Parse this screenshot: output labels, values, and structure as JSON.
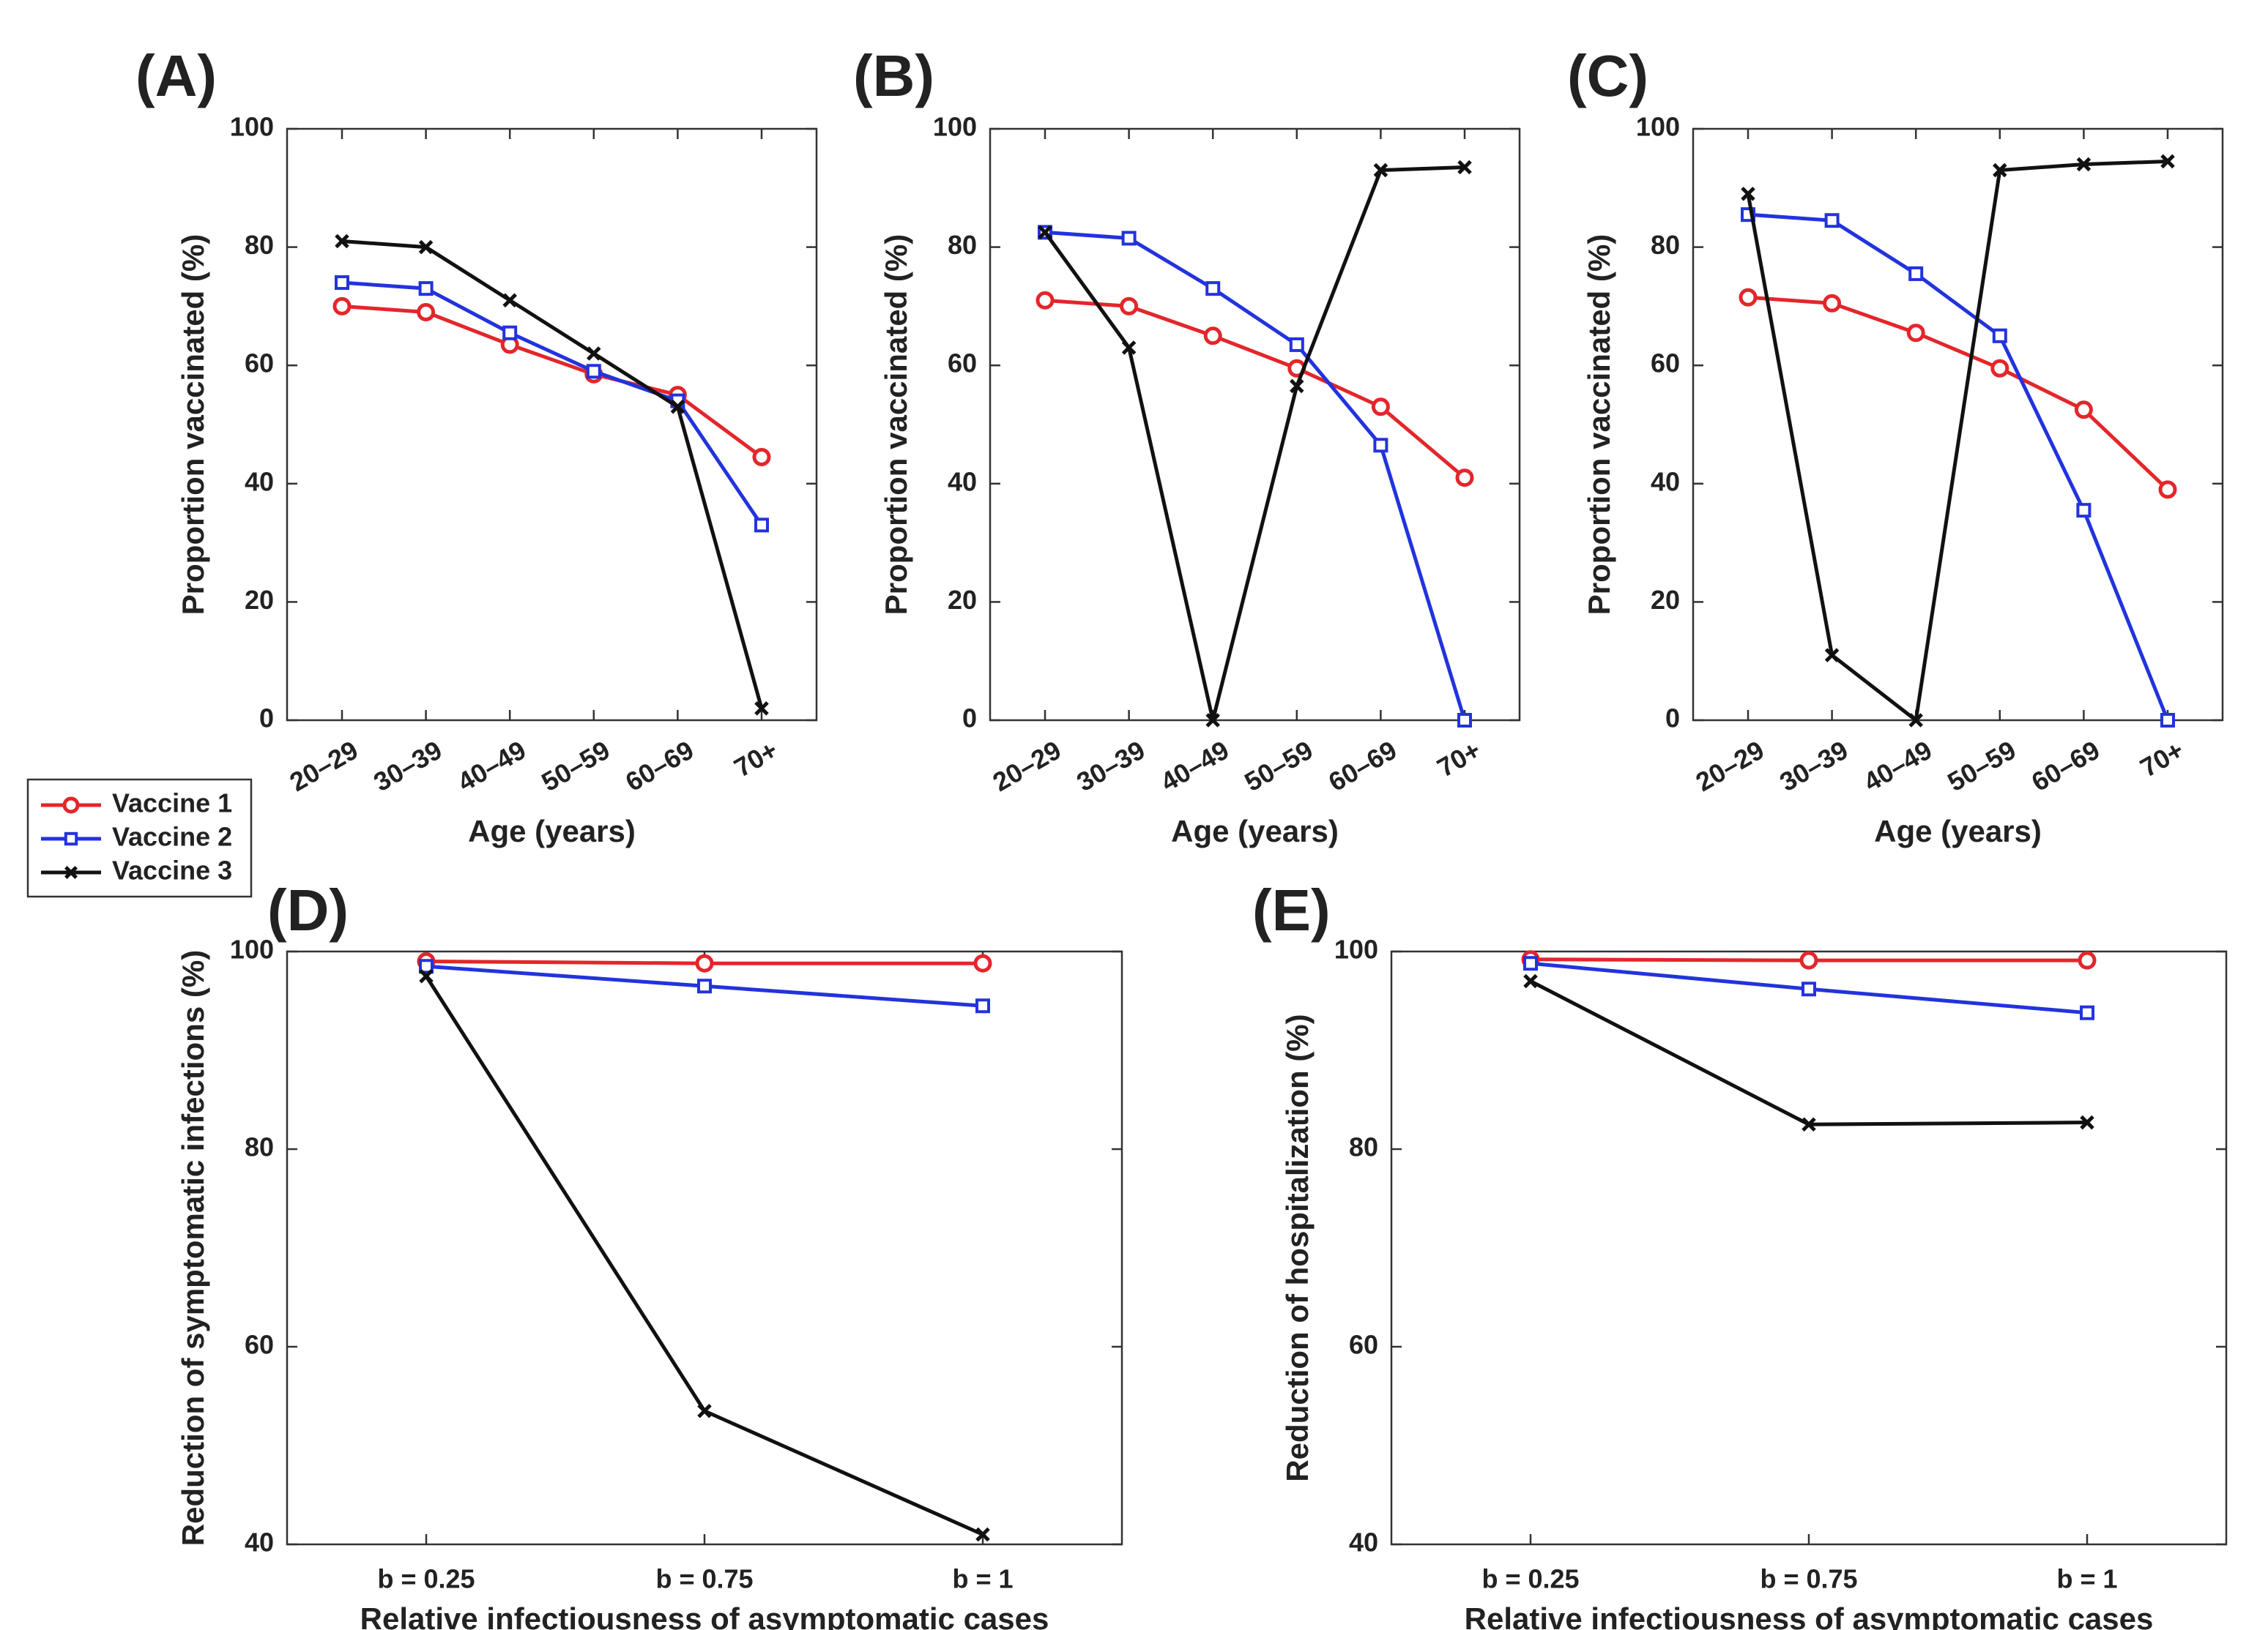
{
  "colors": {
    "vaccine1": "#e3262b",
    "vaccine2": "#2233dd",
    "vaccine3": "#111111",
    "axis": "#333333"
  },
  "legend": {
    "placement": "left, between rows",
    "entries": [
      {
        "label": "Vaccine 1",
        "marker": "circle",
        "color_key": "vaccine1"
      },
      {
        "label": "Vaccine 2",
        "marker": "square",
        "color_key": "vaccine2"
      },
      {
        "label": "Vaccine 3",
        "marker": "x",
        "color_key": "vaccine3"
      }
    ]
  },
  "chart_data": [
    {
      "panel": "(A)",
      "type": "line",
      "categories": [
        "20–29",
        "30–39",
        "40–49",
        "50–59",
        "60–69",
        "70+"
      ],
      "xlabel": "Age (years)",
      "ylabel": "Proportion vaccinated (%)",
      "ylim": [
        0,
        100
      ],
      "yticks": [
        0,
        20,
        40,
        60,
        80,
        100
      ],
      "grid": false,
      "series": [
        {
          "name": "Vaccine 1",
          "values": [
            70,
            69,
            63.5,
            58.5,
            55,
            44.5
          ]
        },
        {
          "name": "Vaccine 2",
          "values": [
            74,
            73,
            65.5,
            59,
            54,
            33
          ]
        },
        {
          "name": "Vaccine 3",
          "values": [
            81,
            80,
            71,
            62,
            53,
            2
          ]
        }
      ]
    },
    {
      "panel": "(B)",
      "type": "line",
      "categories": [
        "20–29",
        "30–39",
        "40–49",
        "50–59",
        "60–69",
        "70+"
      ],
      "xlabel": "Age (years)",
      "ylabel": "Proportion vaccinated (%)",
      "ylim": [
        0,
        100
      ],
      "yticks": [
        0,
        20,
        40,
        60,
        80,
        100
      ],
      "grid": false,
      "series": [
        {
          "name": "Vaccine 1",
          "values": [
            71,
            70,
            65,
            59.5,
            53,
            41
          ]
        },
        {
          "name": "Vaccine 2",
          "values": [
            82.5,
            81.5,
            73,
            63.5,
            46.5,
            0
          ]
        },
        {
          "name": "Vaccine 3",
          "values": [
            82.5,
            63,
            0,
            56.5,
            93,
            93.5
          ]
        }
      ]
    },
    {
      "panel": "(C)",
      "type": "line",
      "categories": [
        "20–29",
        "30–39",
        "40–49",
        "50–59",
        "60–69",
        "70+"
      ],
      "xlabel": "Age (years)",
      "ylabel": "Proportion vaccinated (%)",
      "ylim": [
        0,
        100
      ],
      "yticks": [
        0,
        20,
        40,
        60,
        80,
        100
      ],
      "grid": false,
      "series": [
        {
          "name": "Vaccine 1",
          "values": [
            71.5,
            70.5,
            65.5,
            59.5,
            52.5,
            39
          ]
        },
        {
          "name": "Vaccine 2",
          "values": [
            85.5,
            84.5,
            75.5,
            65,
            35.5,
            0
          ]
        },
        {
          "name": "Vaccine 3",
          "values": [
            89,
            11,
            0,
            93,
            94,
            94.5
          ]
        }
      ]
    },
    {
      "panel": "(D)",
      "type": "line",
      "categories": [
        "b = 0.25",
        "b = 0.75",
        "b = 1"
      ],
      "xlabel": "Relative infectiousness of asymptomatic cases",
      "ylabel": "Reduction of symptomatic infections (%)",
      "ylim": [
        40,
        100
      ],
      "yticks": [
        40,
        60,
        80,
        100
      ],
      "grid": false,
      "series": [
        {
          "name": "Vaccine 1",
          "values": [
            99,
            98.8,
            98.8
          ]
        },
        {
          "name": "Vaccine 2",
          "values": [
            98.5,
            96.5,
            94.5
          ]
        },
        {
          "name": "Vaccine 3",
          "values": [
            97.5,
            53.5,
            41
          ]
        }
      ]
    },
    {
      "panel": "(E)",
      "type": "line",
      "categories": [
        "b = 0.25",
        "b = 0.75",
        "b = 1"
      ],
      "xlabel": "Relative infectiousness of asymptomatic cases",
      "ylabel": "Reduction of hospitalization (%)",
      "ylim": [
        40,
        100
      ],
      "yticks": [
        40,
        60,
        80,
        100
      ],
      "grid": false,
      "series": [
        {
          "name": "Vaccine 1",
          "values": [
            99.2,
            99.1,
            99.1
          ]
        },
        {
          "name": "Vaccine 2",
          "values": [
            98.8,
            96.2,
            93.8
          ]
        },
        {
          "name": "Vaccine 3",
          "values": [
            97,
            82.5,
            82.7
          ]
        }
      ]
    }
  ]
}
